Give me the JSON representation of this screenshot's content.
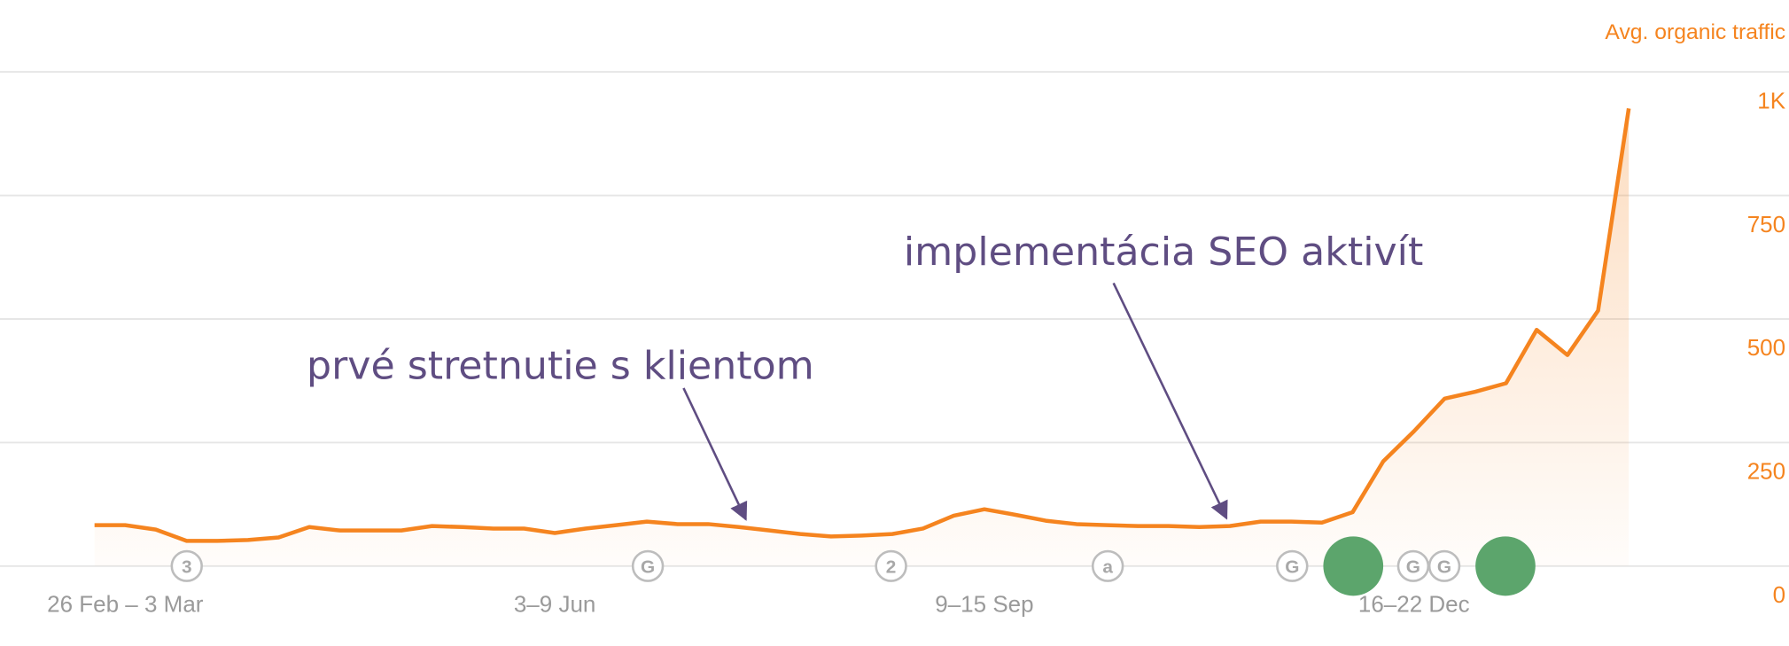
{
  "chart_data": {
    "type": "line",
    "y_axis_label": "Avg. organic traffic",
    "categories": [
      null,
      "26 Feb – 3 Mar",
      null,
      null,
      null,
      null,
      null,
      null,
      null,
      null,
      null,
      null,
      null,
      null,
      null,
      "3–9 Jun",
      null,
      null,
      null,
      null,
      null,
      null,
      null,
      null,
      null,
      null,
      null,
      null,
      null,
      "9–15 Sep",
      null,
      null,
      null,
      null,
      null,
      null,
      null,
      null,
      null,
      null,
      null,
      null,
      null,
      "16–22 Dec",
      null,
      null,
      null,
      null,
      null,
      null,
      null
    ],
    "series": [
      {
        "name": "Avg. organic traffic",
        "color": "#f5841f",
        "values": [
          83,
          83,
          74,
          51,
          51,
          53,
          58,
          79,
          72,
          72,
          72,
          81,
          79,
          76,
          76,
          67,
          76,
          83,
          90,
          85,
          85,
          79,
          72,
          65,
          60,
          62,
          65,
          76,
          102,
          115,
          104,
          92,
          85,
          83,
          81,
          81,
          79,
          81,
          90,
          90,
          88,
          109,
          212,
          273,
          339,
          353,
          370,
          478,
          427,
          517,
          926
        ]
      }
    ],
    "ylim": [
      0,
      1000
    ],
    "yticks": [
      0,
      250,
      500,
      750,
      {
        "value": 1000,
        "label": "1K"
      }
    ],
    "grid": true,
    "annotations": [
      "prvé stretnutie s klientom",
      "implementácia SEO aktivít"
    ],
    "event_markers": [
      "3",
      "G",
      "2",
      "a",
      "G",
      "G",
      "G"
    ]
  }
}
